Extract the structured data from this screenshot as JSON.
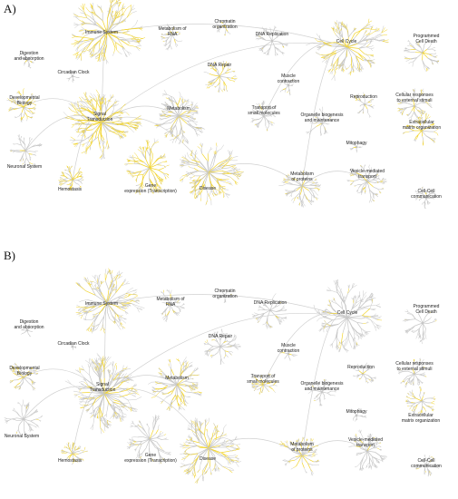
{
  "colors": {
    "highlight": "#f2d42c",
    "edge": "#c8c8c8",
    "node": "#bdbdbd",
    "text": "#222222"
  },
  "panels": [
    {
      "letter": "A)",
      "labels": {
        "immune_system": "Immune System",
        "chromatin": "Chromatin\norganization",
        "metabolism_rna": "Metabolism of\nRNA",
        "dna_replication": "DNA Replication",
        "cell_cycle": "Cell Cycle",
        "programmed_death": "Programmed\nCell Death",
        "digestion": "Digestion\nand absorption",
        "circadian": "Circadian Clock",
        "dna_repair": "DNA Repair",
        "muscle": "Muscle\ncontraction",
        "developmental": "Developmental\nBiology",
        "reproduction": "Reproduction",
        "cellular_responses": "Cellular responses\nto external stimuli",
        "signal": "Signal\nTransduction",
        "metabolism": "Metabolism",
        "transport_small": "Transport of\nsmall molecules",
        "organelle": "Organelle biogenesis\nand maintenance",
        "ecm": "Extracellular\nmatrix organization",
        "mitophagy": "Mitophagy",
        "neuronal": "Neuronal System",
        "metabolism_proteins": "Metabolism\nof proteins",
        "vesicle": "Vesicle-mediated\ntransport",
        "hemostasis": "Hemostasis",
        "gene_expression": "Gene\nexpression (Transcription)",
        "disease": "Disease",
        "cell_cell": "Cell-Cell\ncommunication"
      }
    },
    {
      "letter": "B)",
      "labels": {
        "immune_system": "Immune System",
        "chromatin": "Chromatin\norganization",
        "metabolism_rna": "Metabolism of\nRNA",
        "dna_replication": "DNA Replication",
        "cell_cycle": "Cell Cycle",
        "programmed_death": "Programmed\nCell Death",
        "digestion": "Digestion\nand absorption",
        "circadian": "Circadian Clock",
        "dna_repair": "DNA Repair",
        "muscle": "Muscle\ncontraction",
        "developmental": "Developmental\nBiology",
        "reproduction": "Reproduction",
        "cellular_responses": "Cellular responses\nto external stimuli",
        "signal": "Signal\nTransduction",
        "metabolism": "Metabolism",
        "transport_small": "Transport of\nsmall molecules",
        "organelle": "Organelle biogenesis\nand maintenance",
        "ecm": "Extracellular\nmatrix organization",
        "mitophagy": "Mitophagy",
        "neuronal": "Neuronal System",
        "metabolism_proteins": "Metabolism\nof proteins",
        "vesicle": "Vesicle-mediated\ntransport",
        "hemostasis": "Hemostasis",
        "gene_expression": "Gene\nexpression (Transcription)",
        "disease": "Disease",
        "cell_cell": "Cell-Cell\ncommunication"
      }
    }
  ]
}
